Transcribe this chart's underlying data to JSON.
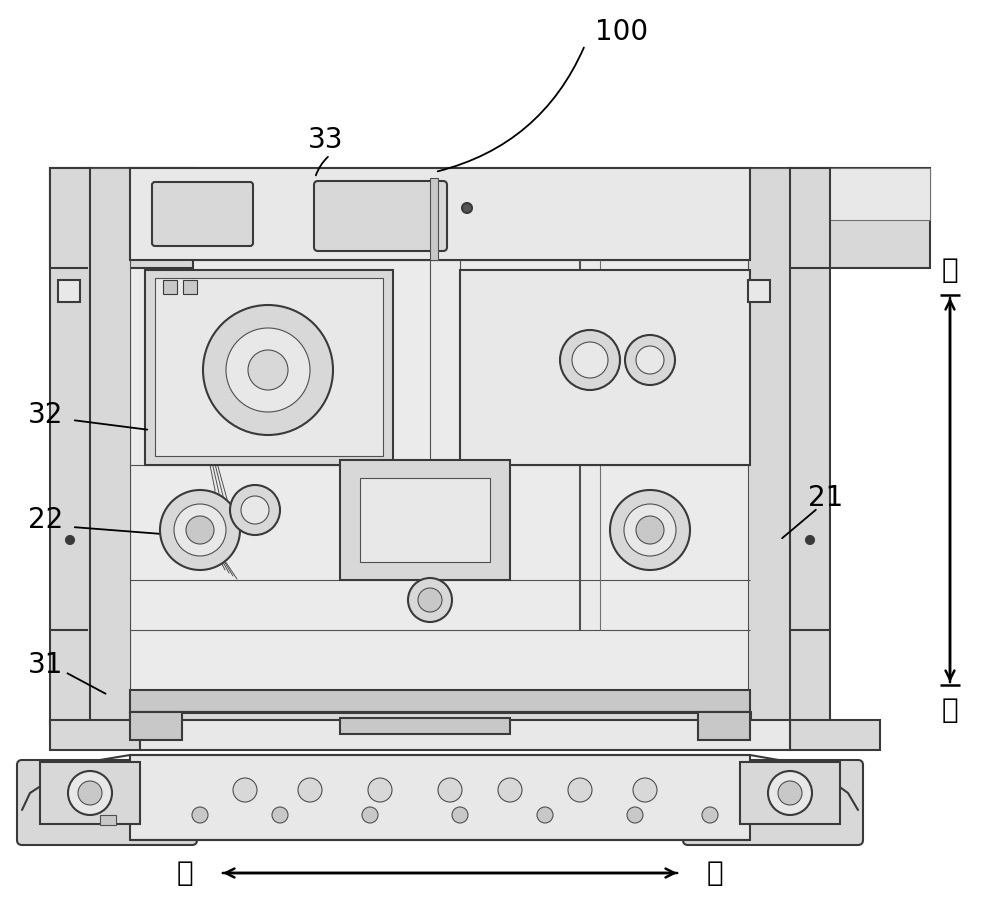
{
  "fig_width": 10.0,
  "fig_height": 9.15,
  "dpi": 100,
  "bg_color": "#ffffff",
  "lc": "#3a3a3a",
  "lc_dark": "#1a1a1a",
  "lc_light": "#707070",
  "lc_med": "#505050",
  "fc_light": "#e8e8e8",
  "fc_med": "#d8d8d8",
  "fc_dark": "#c8c8c8",
  "fc_darker": "#b8b8b8",
  "label_100": "100",
  "label_33": "33",
  "label_32": "32",
  "label_22": "22",
  "label_31": "31",
  "label_21": "21",
  "label_up": "上",
  "label_down": "下",
  "label_right": "右",
  "label_left": "左",
  "font_size_num": 20,
  "font_size_cn": 20,
  "arrow_lw": 1.8,
  "main_lw": 1.5,
  "thin_lw": 0.8,
  "thick_lw": 2.2
}
